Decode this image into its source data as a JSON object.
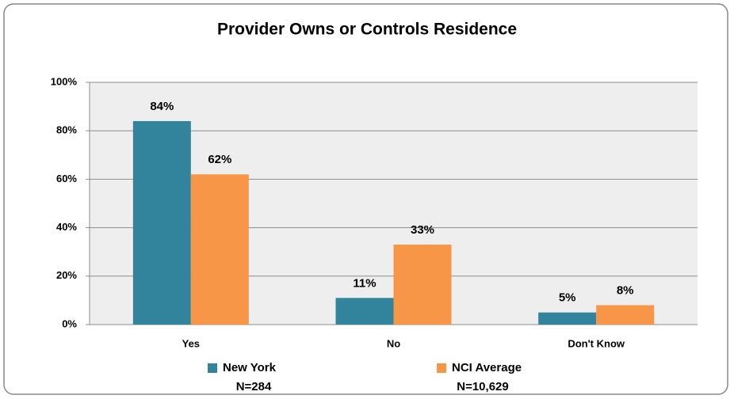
{
  "chart_data": {
    "type": "bar",
    "title": "Provider Owns or Controls Residence",
    "categories": [
      "Yes",
      "No",
      "Don't Know"
    ],
    "series": [
      {
        "name": "New York",
        "sample": "N=284",
        "color": "#31849b",
        "values": [
          84,
          11,
          5
        ],
        "value_labels": [
          "84%",
          "11%",
          "5%"
        ]
      },
      {
        "name": "NCI Average",
        "sample": "N=10,629",
        "color": "#f79646",
        "values": [
          62,
          33,
          8
        ],
        "value_labels": [
          "62%",
          "33%",
          "8%"
        ]
      }
    ],
    "ylim": [
      0,
      100
    ],
    "yticks": [
      {
        "value": 0,
        "label": "0%"
      },
      {
        "value": 20,
        "label": "20%"
      },
      {
        "value": 40,
        "label": "40%"
      },
      {
        "value": 60,
        "label": "60%"
      },
      {
        "value": 80,
        "label": "80%"
      },
      {
        "value": 100,
        "label": "100%"
      }
    ],
    "grid": true,
    "legend": "bottom"
  }
}
